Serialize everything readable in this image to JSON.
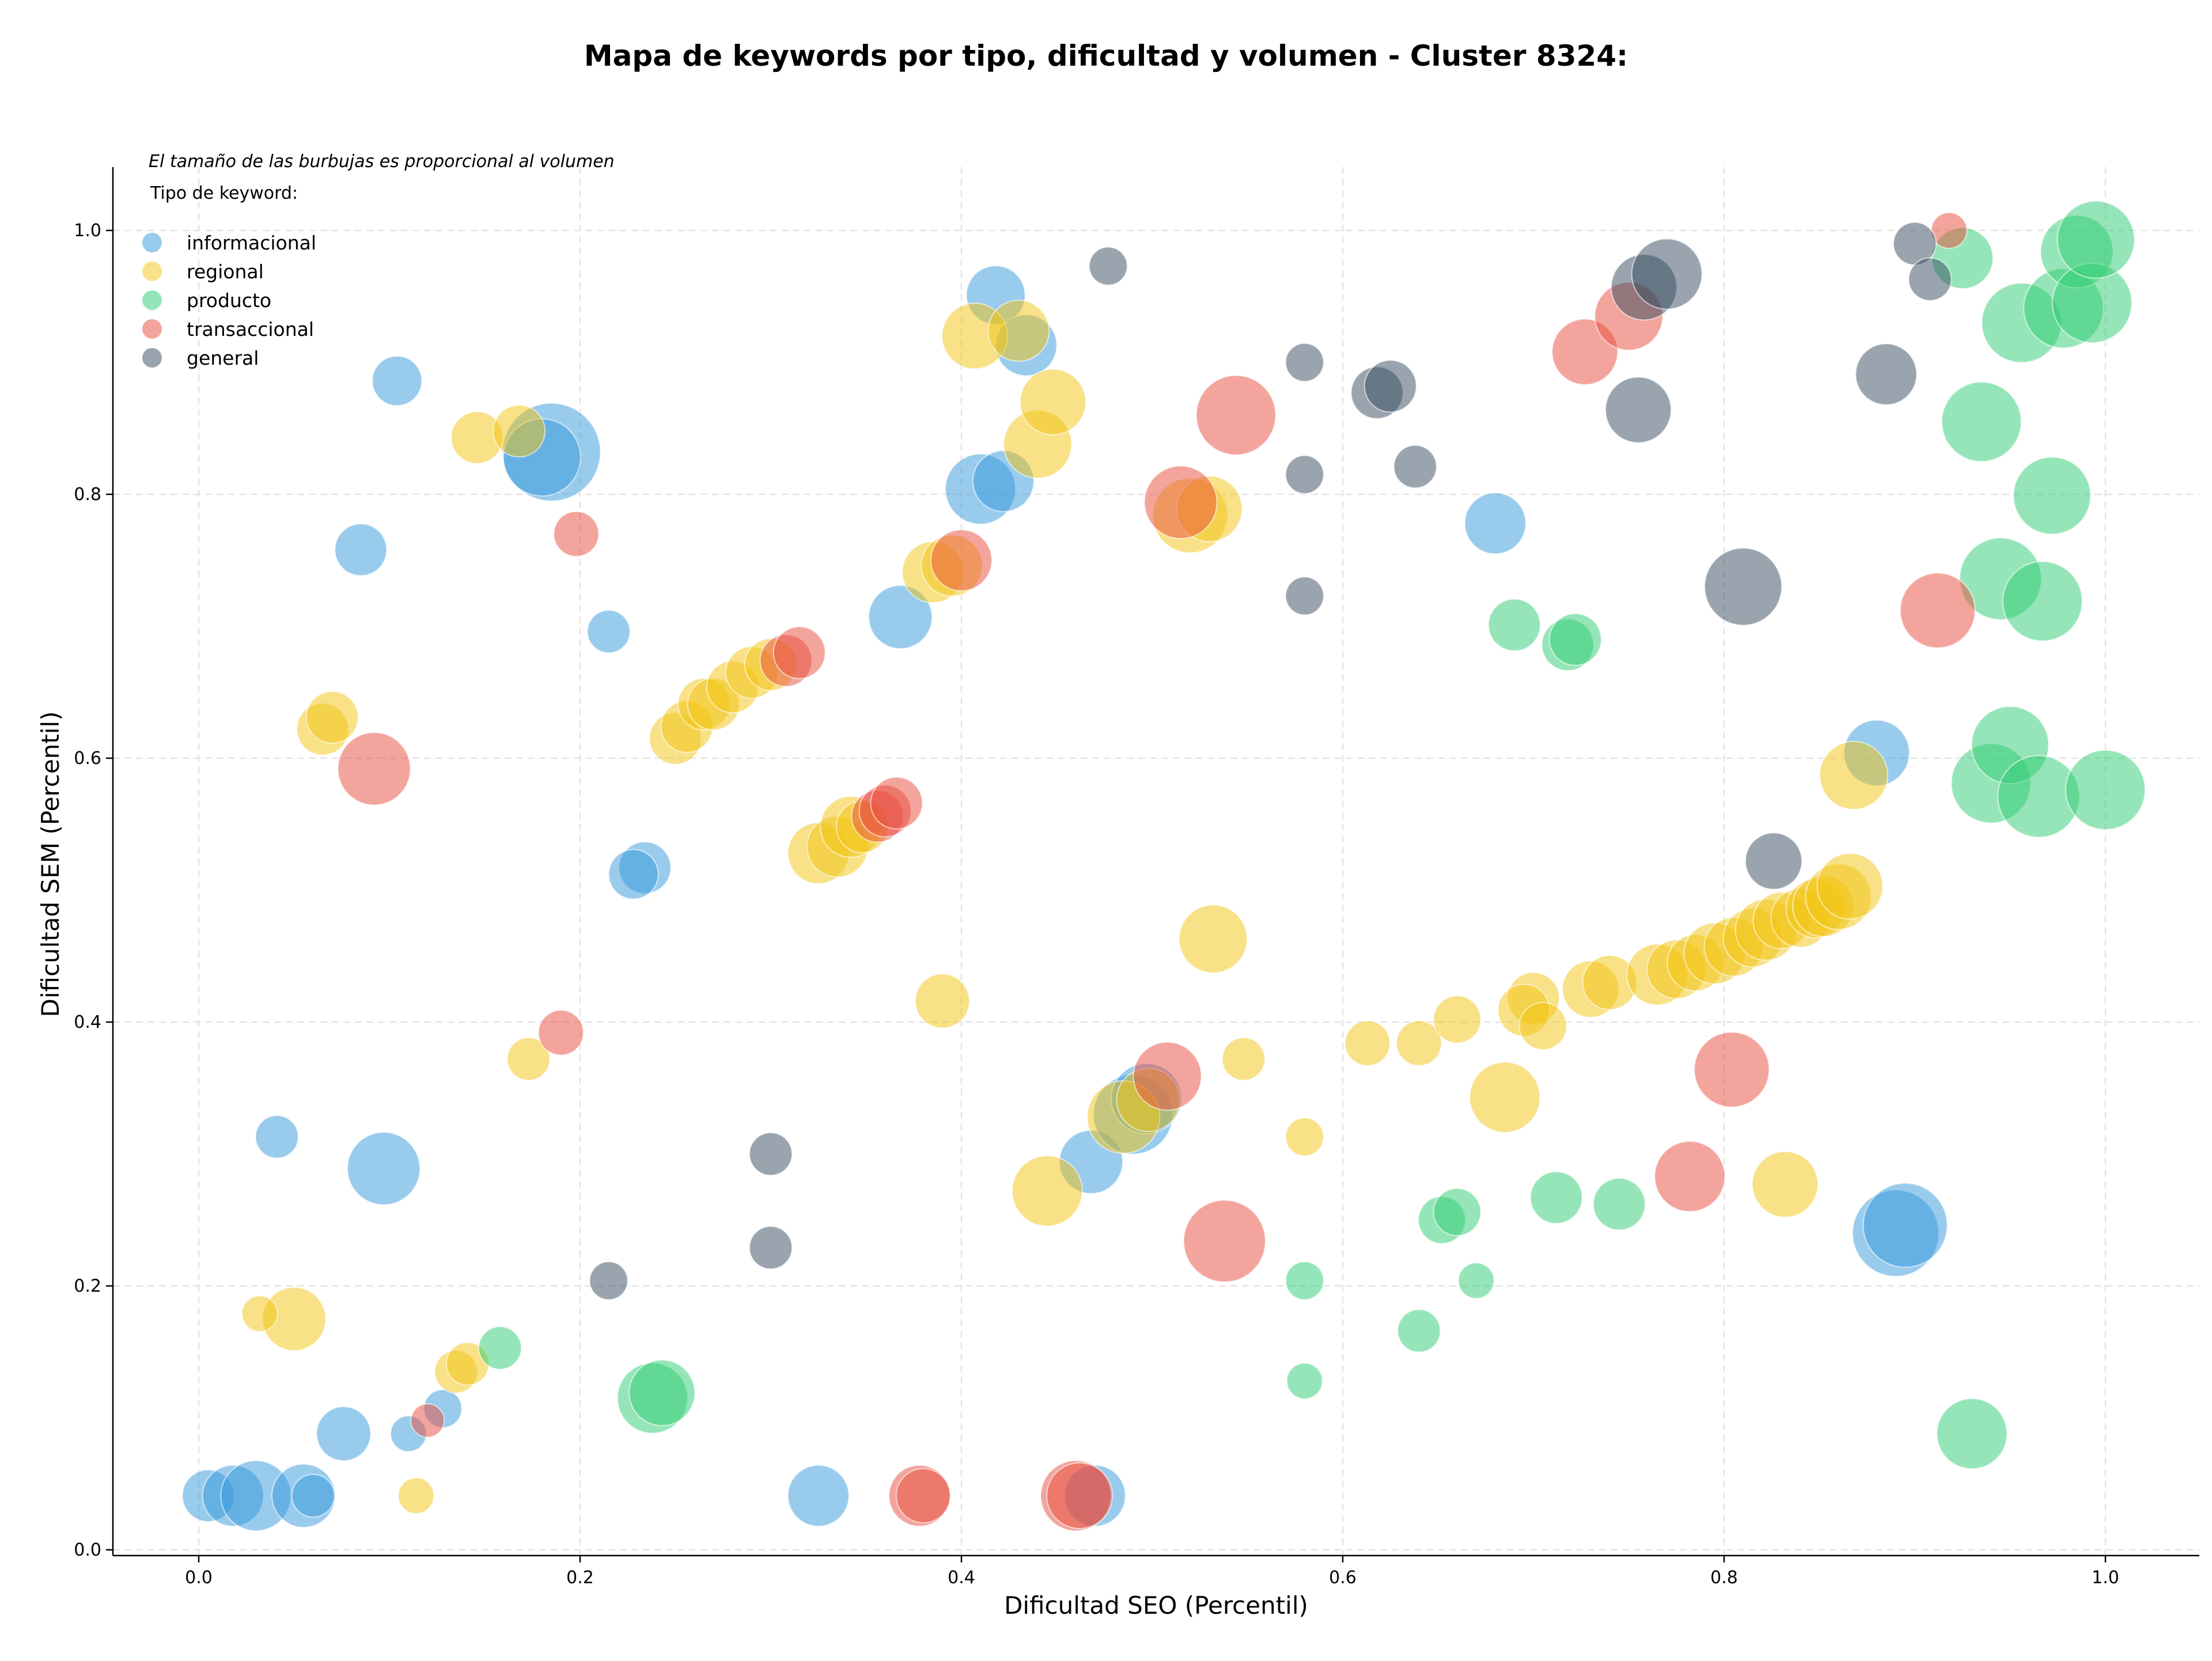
{
  "chart_data": {
    "type": "scatter",
    "title": "Mapa de keywords por tipo, dificultad y volumen - Cluster 8324:",
    "xlabel": "Dificultad SEO (Percentil)",
    "ylabel": "Dificultad SEM (Percentil)",
    "xlim": [
      -0.045,
      1.05
    ],
    "ylim": [
      -0.005,
      1.05
    ],
    "xticks": [
      0.0,
      0.2,
      0.4,
      0.6,
      0.8,
      1.0
    ],
    "yticks": [
      0.0,
      0.2,
      0.4,
      0.6,
      0.8,
      1.0
    ],
    "xtick_labels": [
      "0.0",
      "0.2",
      "0.4",
      "0.6",
      "0.8",
      "1.0"
    ],
    "ytick_labels": [
      "0.0",
      "0.2",
      "0.4",
      "0.6",
      "0.8",
      "1.0"
    ],
    "grid": true,
    "annotation": "El tamaño de las burbujas es proporcional al volumen",
    "legend_title": "Tipo de keyword:",
    "legend_position": "top-left",
    "series": [
      {
        "name": "informacional",
        "color": "#3498db",
        "points": [
          [
            0.104,
            0.886,
            1.1
          ],
          [
            0.185,
            0.832,
            3.2
          ],
          [
            0.18,
            0.828,
            2.3
          ],
          [
            0.085,
            0.758,
            1.2
          ],
          [
            0.215,
            0.696,
            0.8
          ],
          [
            0.234,
            0.517,
            1.2
          ],
          [
            0.228,
            0.512,
            1.1
          ],
          [
            0.041,
            0.313,
            0.8
          ],
          [
            0.097,
            0.289,
            2.1
          ],
          [
            0.128,
            0.107,
            0.6
          ],
          [
            0.11,
            0.088,
            0.5
          ],
          [
            0.076,
            0.088,
            1.3
          ],
          [
            0.005,
            0.041,
            1.2
          ],
          [
            0.018,
            0.041,
            1.6
          ],
          [
            0.03,
            0.041,
            2.0
          ],
          [
            0.055,
            0.041,
            1.7
          ],
          [
            0.06,
            0.041,
            0.8
          ],
          [
            0.325,
            0.041,
            1.6
          ],
          [
            0.47,
            0.041,
            1.6
          ],
          [
            0.418,
            0.951,
            1.5
          ],
          [
            0.434,
            0.913,
            1.6
          ],
          [
            0.41,
            0.804,
            2.0
          ],
          [
            0.422,
            0.81,
            1.6
          ],
          [
            0.368,
            0.707,
            1.7
          ],
          [
            0.68,
            0.778,
            1.6
          ],
          [
            0.468,
            0.294,
            1.7
          ],
          [
            0.49,
            0.33,
            2.4
          ],
          [
            0.497,
            0.342,
            2.0
          ],
          [
            0.88,
            0.604,
            1.8
          ],
          [
            0.89,
            0.24,
            2.7
          ],
          [
            0.895,
            0.246,
            2.6
          ]
        ]
      },
      {
        "name": "regional",
        "color": "#f1c40f",
        "points": [
          [
            0.146,
            0.843,
            1.2
          ],
          [
            0.168,
            0.848,
            1.2
          ],
          [
            0.065,
            0.622,
            1.2
          ],
          [
            0.07,
            0.631,
            1.2
          ],
          [
            0.173,
            0.372,
            0.8
          ],
          [
            0.05,
            0.175,
            1.7
          ],
          [
            0.032,
            0.179,
            0.5
          ],
          [
            0.114,
            0.041,
            0.5
          ],
          [
            0.135,
            0.135,
            0.8
          ],
          [
            0.141,
            0.141,
            0.8
          ],
          [
            0.25,
            0.615,
            1.2
          ],
          [
            0.256,
            0.624,
            1.2
          ],
          [
            0.265,
            0.641,
            1.2
          ],
          [
            0.27,
            0.641,
            1.2
          ],
          [
            0.28,
            0.654,
            1.2
          ],
          [
            0.29,
            0.665,
            1.2
          ],
          [
            0.3,
            0.671,
            1.2
          ],
          [
            0.325,
            0.528,
            1.6
          ],
          [
            0.335,
            0.533,
            1.6
          ],
          [
            0.342,
            0.548,
            1.6
          ],
          [
            0.348,
            0.548,
            1.2
          ],
          [
            0.39,
            0.416,
            1.3
          ],
          [
            0.385,
            0.741,
            1.6
          ],
          [
            0.395,
            0.746,
            1.6
          ],
          [
            0.407,
            0.92,
            1.8
          ],
          [
            0.43,
            0.924,
            1.6
          ],
          [
            0.44,
            0.838,
            1.9
          ],
          [
            0.448,
            0.87,
            1.8
          ],
          [
            0.445,
            0.272,
            2.0
          ],
          [
            0.485,
            0.328,
            2.1
          ],
          [
            0.498,
            0.341,
            1.7
          ],
          [
            0.52,
            0.784,
            2.2
          ],
          [
            0.53,
            0.789,
            1.8
          ],
          [
            0.532,
            0.463,
            1.9
          ],
          [
            0.548,
            0.372,
            0.8
          ],
          [
            0.58,
            0.313,
            0.6
          ],
          [
            0.613,
            0.384,
            0.9
          ],
          [
            0.64,
            0.384,
            0.9
          ],
          [
            0.66,
            0.402,
            1.0
          ],
          [
            0.7,
            0.418,
            1.2
          ],
          [
            0.695,
            0.409,
            1.2
          ],
          [
            0.705,
            0.397,
            1.0
          ],
          [
            0.685,
            0.343,
            2.0
          ],
          [
            0.73,
            0.425,
            1.4
          ],
          [
            0.74,
            0.43,
            1.3
          ],
          [
            0.765,
            0.436,
            1.6
          ],
          [
            0.775,
            0.44,
            1.5
          ],
          [
            0.785,
            0.445,
            1.4
          ],
          [
            0.795,
            0.452,
            1.6
          ],
          [
            0.805,
            0.457,
            1.5
          ],
          [
            0.815,
            0.464,
            1.5
          ],
          [
            0.822,
            0.47,
            1.6
          ],
          [
            0.83,
            0.477,
            1.4
          ],
          [
            0.84,
            0.479,
            1.5
          ],
          [
            0.848,
            0.486,
            1.5
          ],
          [
            0.852,
            0.488,
            1.6
          ],
          [
            0.86,
            0.495,
            1.8
          ],
          [
            0.866,
            0.503,
            1.8
          ],
          [
            0.868,
            0.587,
            1.9
          ],
          [
            0.832,
            0.277,
            1.8
          ]
        ]
      },
      {
        "name": "producto",
        "color": "#2ecc71",
        "points": [
          [
            0.158,
            0.153,
            0.8
          ],
          [
            0.238,
            0.115,
            2.0
          ],
          [
            0.243,
            0.119,
            1.8
          ],
          [
            0.58,
            0.204,
            0.6
          ],
          [
            0.58,
            0.128,
            0.5
          ],
          [
            0.64,
            0.166,
            0.8
          ],
          [
            0.652,
            0.25,
            1.0
          ],
          [
            0.66,
            0.256,
            1.0
          ],
          [
            0.67,
            0.204,
            0.5
          ],
          [
            0.69,
            0.701,
            1.2
          ],
          [
            0.712,
            0.267,
            1.2
          ],
          [
            0.718,
            0.686,
            1.2
          ],
          [
            0.722,
            0.69,
            1.2
          ],
          [
            0.745,
            0.262,
            1.2
          ],
          [
            0.925,
            0.979,
            1.6
          ],
          [
            0.935,
            0.855,
            2.4
          ],
          [
            0.956,
            0.93,
            2.4
          ],
          [
            0.972,
            0.799,
            2.3
          ],
          [
            0.978,
            0.941,
            2.4
          ],
          [
            0.985,
            0.984,
            2.1
          ],
          [
            0.993,
            0.945,
            2.4
          ],
          [
            0.995,
            0.993,
            2.3
          ],
          [
            0.945,
            0.736,
            2.5
          ],
          [
            0.967,
            0.719,
            2.4
          ],
          [
            0.94,
            0.581,
            2.4
          ],
          [
            0.95,
            0.61,
            2.3
          ],
          [
            0.965,
            0.571,
            2.5
          ],
          [
            1.0,
            0.576,
            2.4
          ],
          [
            0.93,
            0.088,
            2.0
          ]
        ]
      },
      {
        "name": "transaccional",
        "color": "#e74c3c",
        "points": [
          [
            0.198,
            0.77,
            0.9
          ],
          [
            0.092,
            0.592,
            2.1
          ],
          [
            0.19,
            0.392,
            0.9
          ],
          [
            0.12,
            0.098,
            0.4
          ],
          [
            0.308,
            0.674,
            1.2
          ],
          [
            0.315,
            0.68,
            1.2
          ],
          [
            0.356,
            0.556,
            1.2
          ],
          [
            0.36,
            0.56,
            1.2
          ],
          [
            0.366,
            0.566,
            1.2
          ],
          [
            0.4,
            0.75,
            1.6
          ],
          [
            0.378,
            0.041,
            1.6
          ],
          [
            0.38,
            0.041,
            1.3
          ],
          [
            0.46,
            0.041,
            2.0
          ],
          [
            0.462,
            0.041,
            1.8
          ],
          [
            0.508,
            0.359,
            1.9
          ],
          [
            0.515,
            0.794,
            2.1
          ],
          [
            0.538,
            0.234,
            2.5
          ],
          [
            0.544,
            0.86,
            2.4
          ],
          [
            0.727,
            0.908,
            1.8
          ],
          [
            0.75,
            0.935,
            1.9
          ],
          [
            0.782,
            0.283,
            2.0
          ],
          [
            0.804,
            0.364,
            2.2
          ],
          [
            0.912,
            0.712,
            2.2
          ],
          [
            0.918,
            1.0,
            0.5
          ]
        ]
      },
      {
        "name": "general",
        "color": "#34495e",
        "points": [
          [
            0.477,
            0.973,
            0.6
          ],
          [
            0.58,
            0.9,
            0.6
          ],
          [
            0.58,
            0.815,
            0.6
          ],
          [
            0.58,
            0.723,
            0.6
          ],
          [
            0.618,
            0.877,
            1.2
          ],
          [
            0.625,
            0.882,
            1.2
          ],
          [
            0.638,
            0.821,
            0.8
          ],
          [
            0.755,
            0.864,
            1.8
          ],
          [
            0.758,
            0.957,
            1.8
          ],
          [
            0.77,
            0.967,
            2.0
          ],
          [
            0.81,
            0.73,
            2.3
          ],
          [
            0.826,
            0.522,
            1.4
          ],
          [
            0.885,
            0.891,
            1.6
          ],
          [
            0.9,
            0.99,
            0.8
          ],
          [
            0.908,
            0.963,
            0.8
          ],
          [
            0.3,
            0.3,
            0.8
          ],
          [
            0.3,
            0.229,
            0.8
          ],
          [
            0.215,
            0.204,
            0.6
          ]
        ]
      }
    ]
  }
}
